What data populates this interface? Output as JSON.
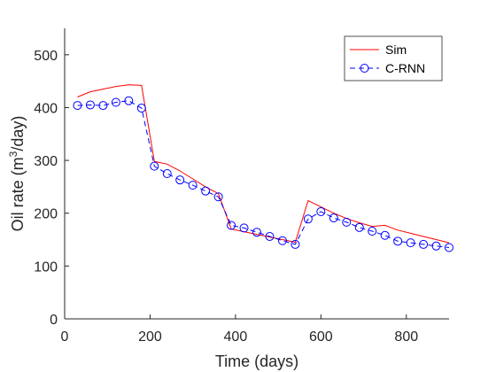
{
  "colors": {
    "sim": "#ff0000",
    "crnn": "#0000ff",
    "axes": "#262626",
    "background": "#ffffff"
  },
  "chart_data": {
    "type": "line",
    "title": "",
    "xlabel": "Time (days)",
    "ylabel_prefix": "Oil rate (m",
    "ylabel_sup": "3",
    "ylabel_suffix": "/day)",
    "xlim": [
      0,
      900
    ],
    "ylim": [
      0,
      550
    ],
    "xticks": [
      0,
      200,
      400,
      600,
      800
    ],
    "yticks": [
      0,
      100,
      200,
      300,
      400,
      500
    ],
    "grid": false,
    "legend_position": "top-right",
    "series": [
      {
        "name": "Sim",
        "style": "solid",
        "marker": "none",
        "x": [
          30,
          60,
          90,
          120,
          150,
          180,
          210,
          240,
          270,
          300,
          330,
          360,
          390,
          420,
          450,
          480,
          510,
          540,
          570,
          600,
          630,
          660,
          690,
          720,
          750,
          780,
          810,
          840,
          870,
          900
        ],
        "y": [
          420,
          430,
          435,
          440,
          443,
          442,
          298,
          293,
          280,
          265,
          250,
          237,
          170,
          165,
          160,
          155,
          150,
          145,
          224,
          212,
          200,
          190,
          182,
          175,
          177,
          168,
          162,
          156,
          150,
          144
        ]
      },
      {
        "name": "C-RNN",
        "style": "dashed",
        "marker": "circle",
        "x": [
          30,
          60,
          90,
          120,
          150,
          180,
          210,
          240,
          270,
          300,
          330,
          360,
          390,
          420,
          450,
          480,
          510,
          540,
          570,
          600,
          630,
          660,
          690,
          720,
          750,
          780,
          810,
          840,
          870,
          900
        ],
        "y": [
          404,
          405,
          404,
          410,
          413,
          399,
          289,
          275,
          263,
          253,
          242,
          231,
          177,
          172,
          164,
          156,
          148,
          141,
          189,
          203,
          191,
          183,
          173,
          166,
          158,
          147,
          144,
          141,
          138,
          135
        ]
      }
    ]
  }
}
